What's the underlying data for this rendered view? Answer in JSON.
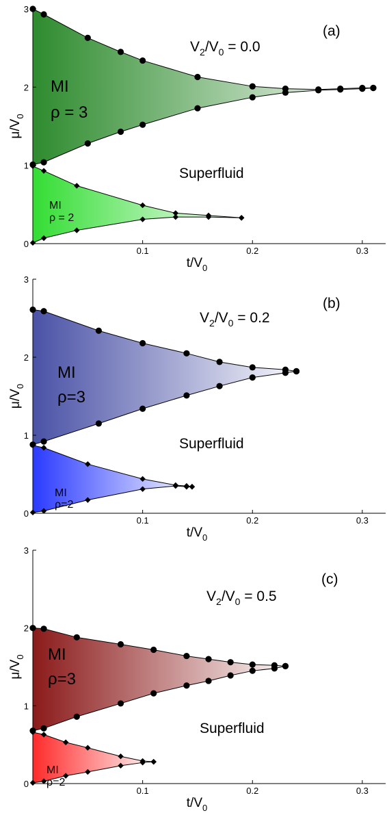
{
  "chart_data": [
    {
      "type": "scatter",
      "panel_label": "(a)",
      "annotation": {
        "main": "V",
        "sub": "2",
        "rest": "/V",
        "sub2": "0",
        "value": " = 0.0"
      },
      "phase_label": "Superfluid",
      "xlabel": {
        "main": "t/V",
        "sub": "0"
      },
      "ylabel": {
        "main": "μ/V",
        "sub": "0"
      },
      "xlim": [
        0,
        0.32
      ],
      "ylim": [
        0,
        3
      ],
      "xticks": [
        "0.1",
        "0.2",
        "0.3"
      ],
      "xtick_values": [
        0.1,
        0.2,
        0.3
      ],
      "yticks": [
        "0",
        "1",
        "2",
        "3"
      ],
      "ytick_values": [
        0,
        1,
        2,
        3
      ],
      "lobes": [
        {
          "line1": "MI",
          "line2": "ρ = 3",
          "color": "#2e8b2e",
          "marker": "circle",
          "upper": [
            [
              0,
              3.0
            ],
            [
              0.01,
              2.93
            ],
            [
              0.05,
              2.63
            ],
            [
              0.08,
              2.45
            ],
            [
              0.1,
              2.34
            ],
            [
              0.15,
              2.13
            ],
            [
              0.2,
              2.01
            ],
            [
              0.23,
              1.98
            ],
            [
              0.26,
              1.97
            ],
            [
              0.28,
              1.98
            ],
            [
              0.3,
              1.99
            ],
            [
              0.31,
              1.99
            ]
          ],
          "lower": [
            [
              0,
              1.01
            ],
            [
              0.01,
              1.04
            ],
            [
              0.05,
              1.28
            ],
            [
              0.08,
              1.43
            ],
            [
              0.1,
              1.52
            ],
            [
              0.15,
              1.73
            ],
            [
              0.2,
              1.87
            ],
            [
              0.23,
              1.93
            ],
            [
              0.26,
              1.96
            ],
            [
              0.28,
              1.97
            ],
            [
              0.3,
              1.98
            ],
            [
              0.31,
              1.99
            ]
          ]
        },
        {
          "line1": "MI",
          "line2": "ρ = 2",
          "color": "#33dd33",
          "marker": "diamond",
          "upper": [
            [
              0,
              0.99
            ],
            [
              0.01,
              0.93
            ],
            [
              0.04,
              0.74
            ],
            [
              0.1,
              0.49
            ],
            [
              0.13,
              0.39
            ],
            [
              0.16,
              0.36
            ],
            [
              0.19,
              0.33
            ]
          ],
          "lower": [
            [
              0,
              0.01
            ],
            [
              0.01,
              0.07
            ],
            [
              0.04,
              0.17
            ],
            [
              0.1,
              0.31
            ],
            [
              0.13,
              0.34
            ],
            [
              0.16,
              0.34
            ],
            [
              0.19,
              0.33
            ]
          ]
        }
      ]
    },
    {
      "type": "scatter",
      "panel_label": "(b)",
      "annotation": {
        "main": "V",
        "sub": "2",
        "rest": "/V",
        "sub2": "0",
        "value": " = 0.2"
      },
      "phase_label": "Superfluid",
      "xlabel": {
        "main": "t/V",
        "sub": "0"
      },
      "ylabel": {
        "main": "μ/V",
        "sub": "0"
      },
      "xlim": [
        0,
        0.32
      ],
      "ylim": [
        0,
        3
      ],
      "xticks": [
        "0.1",
        "0.2",
        "0.3"
      ],
      "xtick_values": [
        0.1,
        0.2,
        0.3
      ],
      "yticks": [
        "0",
        "1",
        "2",
        "3"
      ],
      "ytick_values": [
        0,
        1,
        2,
        3
      ],
      "lobes": [
        {
          "line1": "MI",
          "line2": "ρ=3",
          "color": "#4a52a6",
          "marker": "circle",
          "upper": [
            [
              0,
              2.61
            ],
            [
              0.01,
              2.59
            ],
            [
              0.06,
              2.34
            ],
            [
              0.1,
              2.18
            ],
            [
              0.14,
              2.05
            ],
            [
              0.17,
              1.94
            ],
            [
              0.2,
              1.87
            ],
            [
              0.23,
              1.84
            ],
            [
              0.24,
              1.82
            ]
          ],
          "lower": [
            [
              0,
              0.88
            ],
            [
              0.01,
              0.92
            ],
            [
              0.06,
              1.15
            ],
            [
              0.1,
              1.34
            ],
            [
              0.14,
              1.51
            ],
            [
              0.17,
              1.63
            ],
            [
              0.2,
              1.74
            ],
            [
              0.23,
              1.8
            ],
            [
              0.24,
              1.82
            ]
          ]
        },
        {
          "line1": "MI",
          "line2": "ρ=2",
          "color": "#2a3aff",
          "marker": "diamond",
          "upper": [
            [
              0,
              0.87
            ],
            [
              0.01,
              0.84
            ],
            [
              0.05,
              0.63
            ],
            [
              0.1,
              0.44
            ],
            [
              0.13,
              0.36
            ],
            [
              0.14,
              0.35
            ],
            [
              0.145,
              0.34
            ]
          ],
          "lower": [
            [
              0,
              0.01
            ],
            [
              0.01,
              0.03
            ],
            [
              0.05,
              0.17
            ],
            [
              0.1,
              0.31
            ],
            [
              0.13,
              0.35
            ],
            [
              0.14,
              0.34
            ],
            [
              0.145,
              0.34
            ]
          ]
        }
      ]
    },
    {
      "type": "scatter",
      "panel_label": "(c)",
      "annotation": {
        "main": "V",
        "sub": "2",
        "rest": "/V",
        "sub2": "0",
        "value": " = 0.5"
      },
      "phase_label": "Superfluid",
      "xlabel": {
        "main": "t/V",
        "sub": "0"
      },
      "ylabel": {
        "main": "μ/V",
        "sub": "0"
      },
      "xlim": [
        0,
        0.32
      ],
      "ylim": [
        0,
        3
      ],
      "xticks": [
        "0.1",
        "0.2",
        "0.3"
      ],
      "xtick_values": [
        0.1,
        0.2,
        0.3
      ],
      "yticks": [
        "0",
        "1",
        "2",
        "3"
      ],
      "ytick_values": [
        0,
        1,
        2,
        3
      ],
      "lobes": [
        {
          "line1": "MI",
          "line2": "ρ=3",
          "color": "#8b1a1a",
          "marker": "circle",
          "upper": [
            [
              0,
              2.0
            ],
            [
              0.01,
              1.99
            ],
            [
              0.04,
              1.88
            ],
            [
              0.08,
              1.79
            ],
            [
              0.11,
              1.72
            ],
            [
              0.14,
              1.64
            ],
            [
              0.16,
              1.6
            ],
            [
              0.18,
              1.56
            ],
            [
              0.2,
              1.53
            ],
            [
              0.22,
              1.52
            ],
            [
              0.23,
              1.51
            ]
          ],
          "lower": [
            [
              0,
              0.68
            ],
            [
              0.01,
              0.71
            ],
            [
              0.04,
              0.86
            ],
            [
              0.08,
              1.03
            ],
            [
              0.11,
              1.16
            ],
            [
              0.14,
              1.26
            ],
            [
              0.16,
              1.32
            ],
            [
              0.18,
              1.39
            ],
            [
              0.2,
              1.45
            ],
            [
              0.22,
              1.48
            ],
            [
              0.23,
              1.51
            ]
          ]
        },
        {
          "line1": "MI",
          "line2": "ρ=2",
          "color": "#ff2a2a",
          "marker": "diamond",
          "upper": [
            [
              0,
              0.66
            ],
            [
              0.01,
              0.63
            ],
            [
              0.03,
              0.53
            ],
            [
              0.05,
              0.46
            ],
            [
              0.08,
              0.35
            ],
            [
              0.1,
              0.29
            ],
            [
              0.11,
              0.28
            ]
          ],
          "lower": [
            [
              0,
              0.01
            ],
            [
              0.01,
              0.03
            ],
            [
              0.03,
              0.1
            ],
            [
              0.05,
              0.15
            ],
            [
              0.08,
              0.23
            ],
            [
              0.1,
              0.27
            ],
            [
              0.11,
              0.28
            ]
          ]
        }
      ]
    }
  ]
}
